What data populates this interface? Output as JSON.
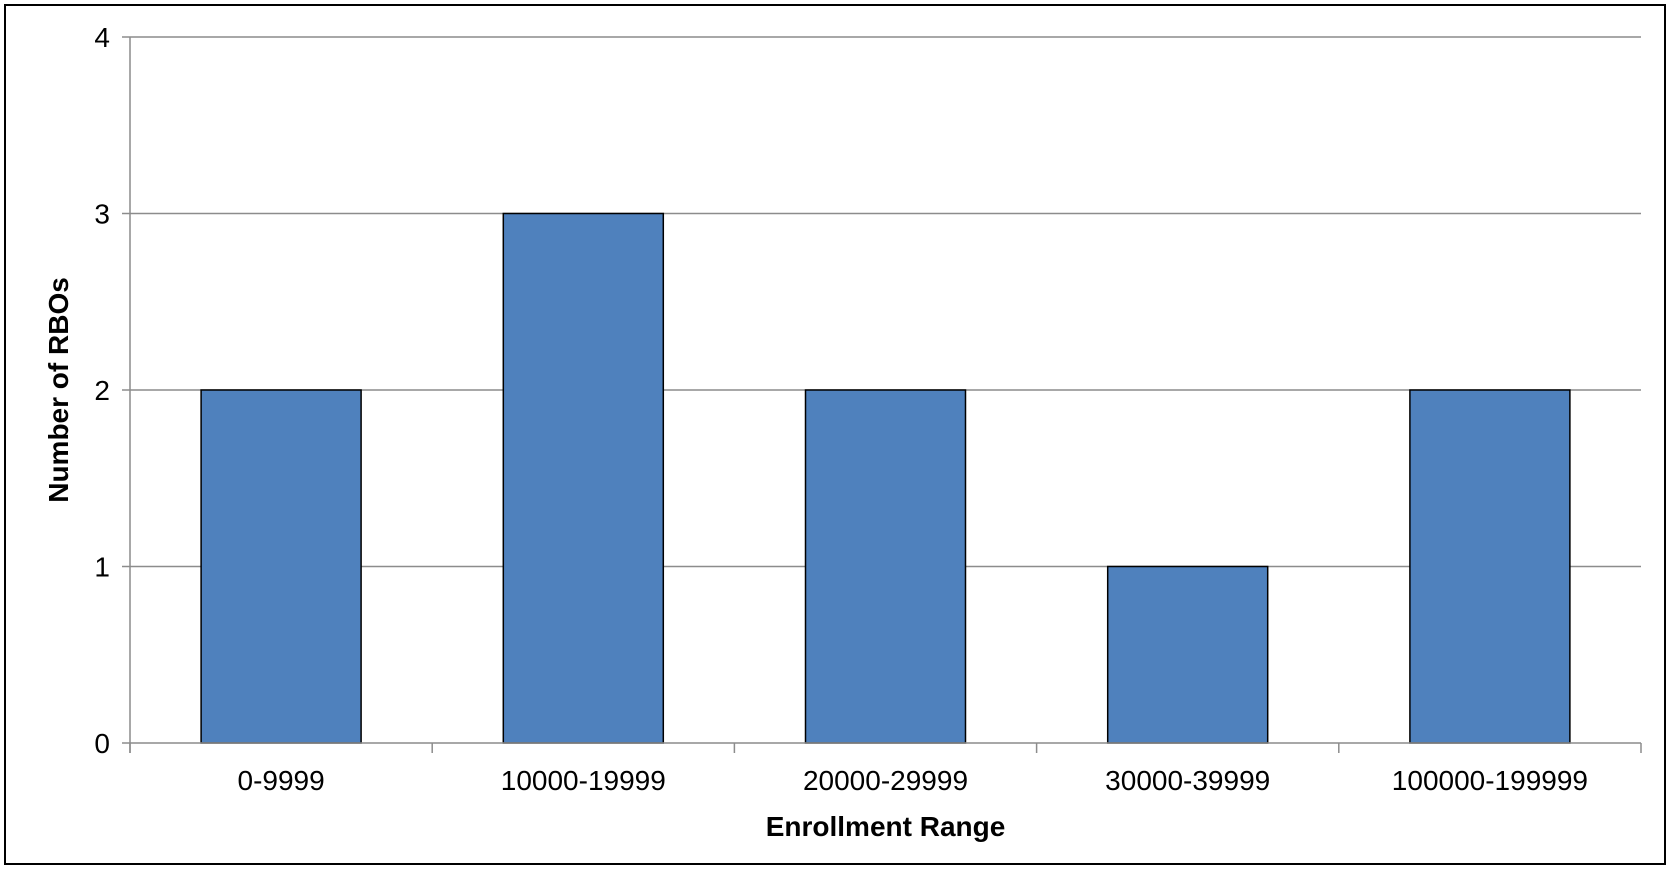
{
  "chart_data": {
    "type": "bar",
    "title": "",
    "xlabel": "Enrollment Range",
    "ylabel": "Number of RBOs",
    "categories": [
      "0-9999",
      "10000-19999",
      "20000-29999",
      "30000-39999",
      "100000-199999"
    ],
    "values": [
      2,
      3,
      2,
      1,
      2
    ],
    "ylim": [
      0,
      4
    ],
    "yticks": [
      "0",
      "1",
      "2",
      "3",
      "4"
    ],
    "grid": true,
    "legend": "none",
    "colors": {
      "bar_fill": "#4f81bd",
      "bar_stroke": "#000000",
      "gridline": "#8c8c8c",
      "axis": "#8c8c8c"
    }
  }
}
